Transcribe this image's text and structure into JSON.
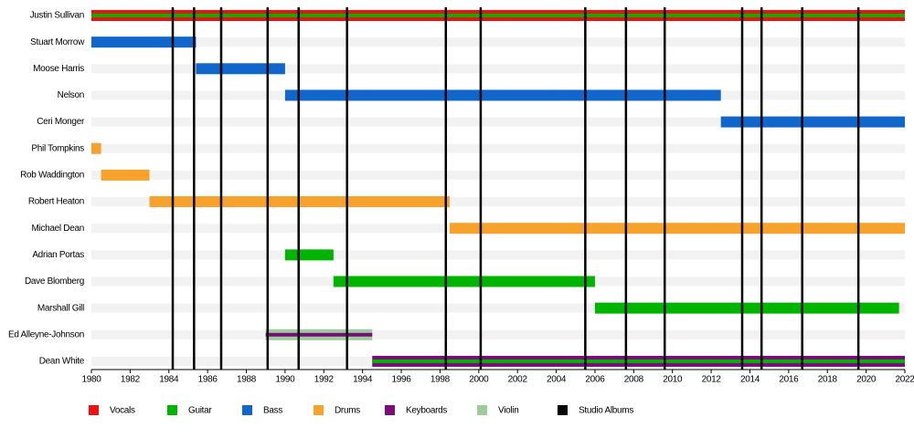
{
  "chart_data": {
    "type": "timeline",
    "xlim": [
      1980,
      2022
    ],
    "xticks": [
      1980,
      1982,
      1984,
      1986,
      1988,
      1990,
      1992,
      1994,
      1996,
      1998,
      2000,
      2002,
      2004,
      2006,
      2008,
      2010,
      2012,
      2014,
      2016,
      2018,
      2020,
      2022
    ],
    "roles": [
      {
        "name": "Vocals",
        "color": "#ee1111"
      },
      {
        "name": "Guitar",
        "color": "#00b400"
      },
      {
        "name": "Bass",
        "color": "#1166cc"
      },
      {
        "name": "Drums",
        "color": "#f6a22c"
      },
      {
        "name": "Keyboards",
        "color": "#7a0d7a"
      },
      {
        "name": "Violin",
        "color": "#9ccc9c"
      }
    ],
    "albums": {
      "name": "Studio Albums",
      "color": "#000000",
      "dates": [
        1984.2,
        1985.3,
        1986.7,
        1989.1,
        1990.7,
        1993.2,
        1998.3,
        2000.1,
        2005.5,
        2007.6,
        2009.6,
        2013.6,
        2014.6,
        2016.7,
        2019.6
      ]
    },
    "members": [
      {
        "name": "Justin Sullivan",
        "bars": [
          {
            "role": "Vocals",
            "start": 1980,
            "end": 2022
          },
          {
            "role": "Guitar",
            "start": 1980,
            "end": 2022
          }
        ]
      },
      {
        "name": "Stuart Morrow",
        "bars": [
          {
            "role": "Bass",
            "start": 1980,
            "end": 1985.4
          }
        ]
      },
      {
        "name": "Moose Harris",
        "bars": [
          {
            "role": "Bass",
            "start": 1985.4,
            "end": 1990
          }
        ]
      },
      {
        "name": "Nelson",
        "bars": [
          {
            "role": "Bass",
            "start": 1990,
            "end": 2012.5
          }
        ]
      },
      {
        "name": "Ceri Monger",
        "bars": [
          {
            "role": "Bass",
            "start": 2012.5,
            "end": 2022
          }
        ]
      },
      {
        "name": "Phil Tompkins",
        "bars": [
          {
            "role": "Drums",
            "start": 1980,
            "end": 1980.5
          }
        ]
      },
      {
        "name": "Rob Waddington",
        "bars": [
          {
            "role": "Drums",
            "start": 1980.5,
            "end": 1983
          }
        ]
      },
      {
        "name": "Robert Heaton",
        "bars": [
          {
            "role": "Drums",
            "start": 1983,
            "end": 1998.5
          }
        ]
      },
      {
        "name": "Michael Dean",
        "bars": [
          {
            "role": "Drums",
            "start": 1998.5,
            "end": 2022
          }
        ]
      },
      {
        "name": "Adrian Portas",
        "bars": [
          {
            "role": "Guitar",
            "start": 1990,
            "end": 1992.5
          }
        ]
      },
      {
        "name": "Dave Blomberg",
        "bars": [
          {
            "role": "Guitar",
            "start": 1992.5,
            "end": 2006
          }
        ]
      },
      {
        "name": "Marshall Gill",
        "bars": [
          {
            "role": "Guitar",
            "start": 2006,
            "end": 2021.7
          }
        ]
      },
      {
        "name": "Ed Alleyne-Johnson",
        "bars": [
          {
            "role": "Violin",
            "start": 1989,
            "end": 1994.5
          },
          {
            "role": "Keyboards",
            "start": 1989,
            "end": 1994.5
          }
        ]
      },
      {
        "name": "Dean White",
        "bars": [
          {
            "role": "Keyboards",
            "start": 1994.5,
            "end": 2022
          },
          {
            "role": "Guitar",
            "start": 1994.5,
            "end": 2022
          }
        ]
      }
    ]
  }
}
